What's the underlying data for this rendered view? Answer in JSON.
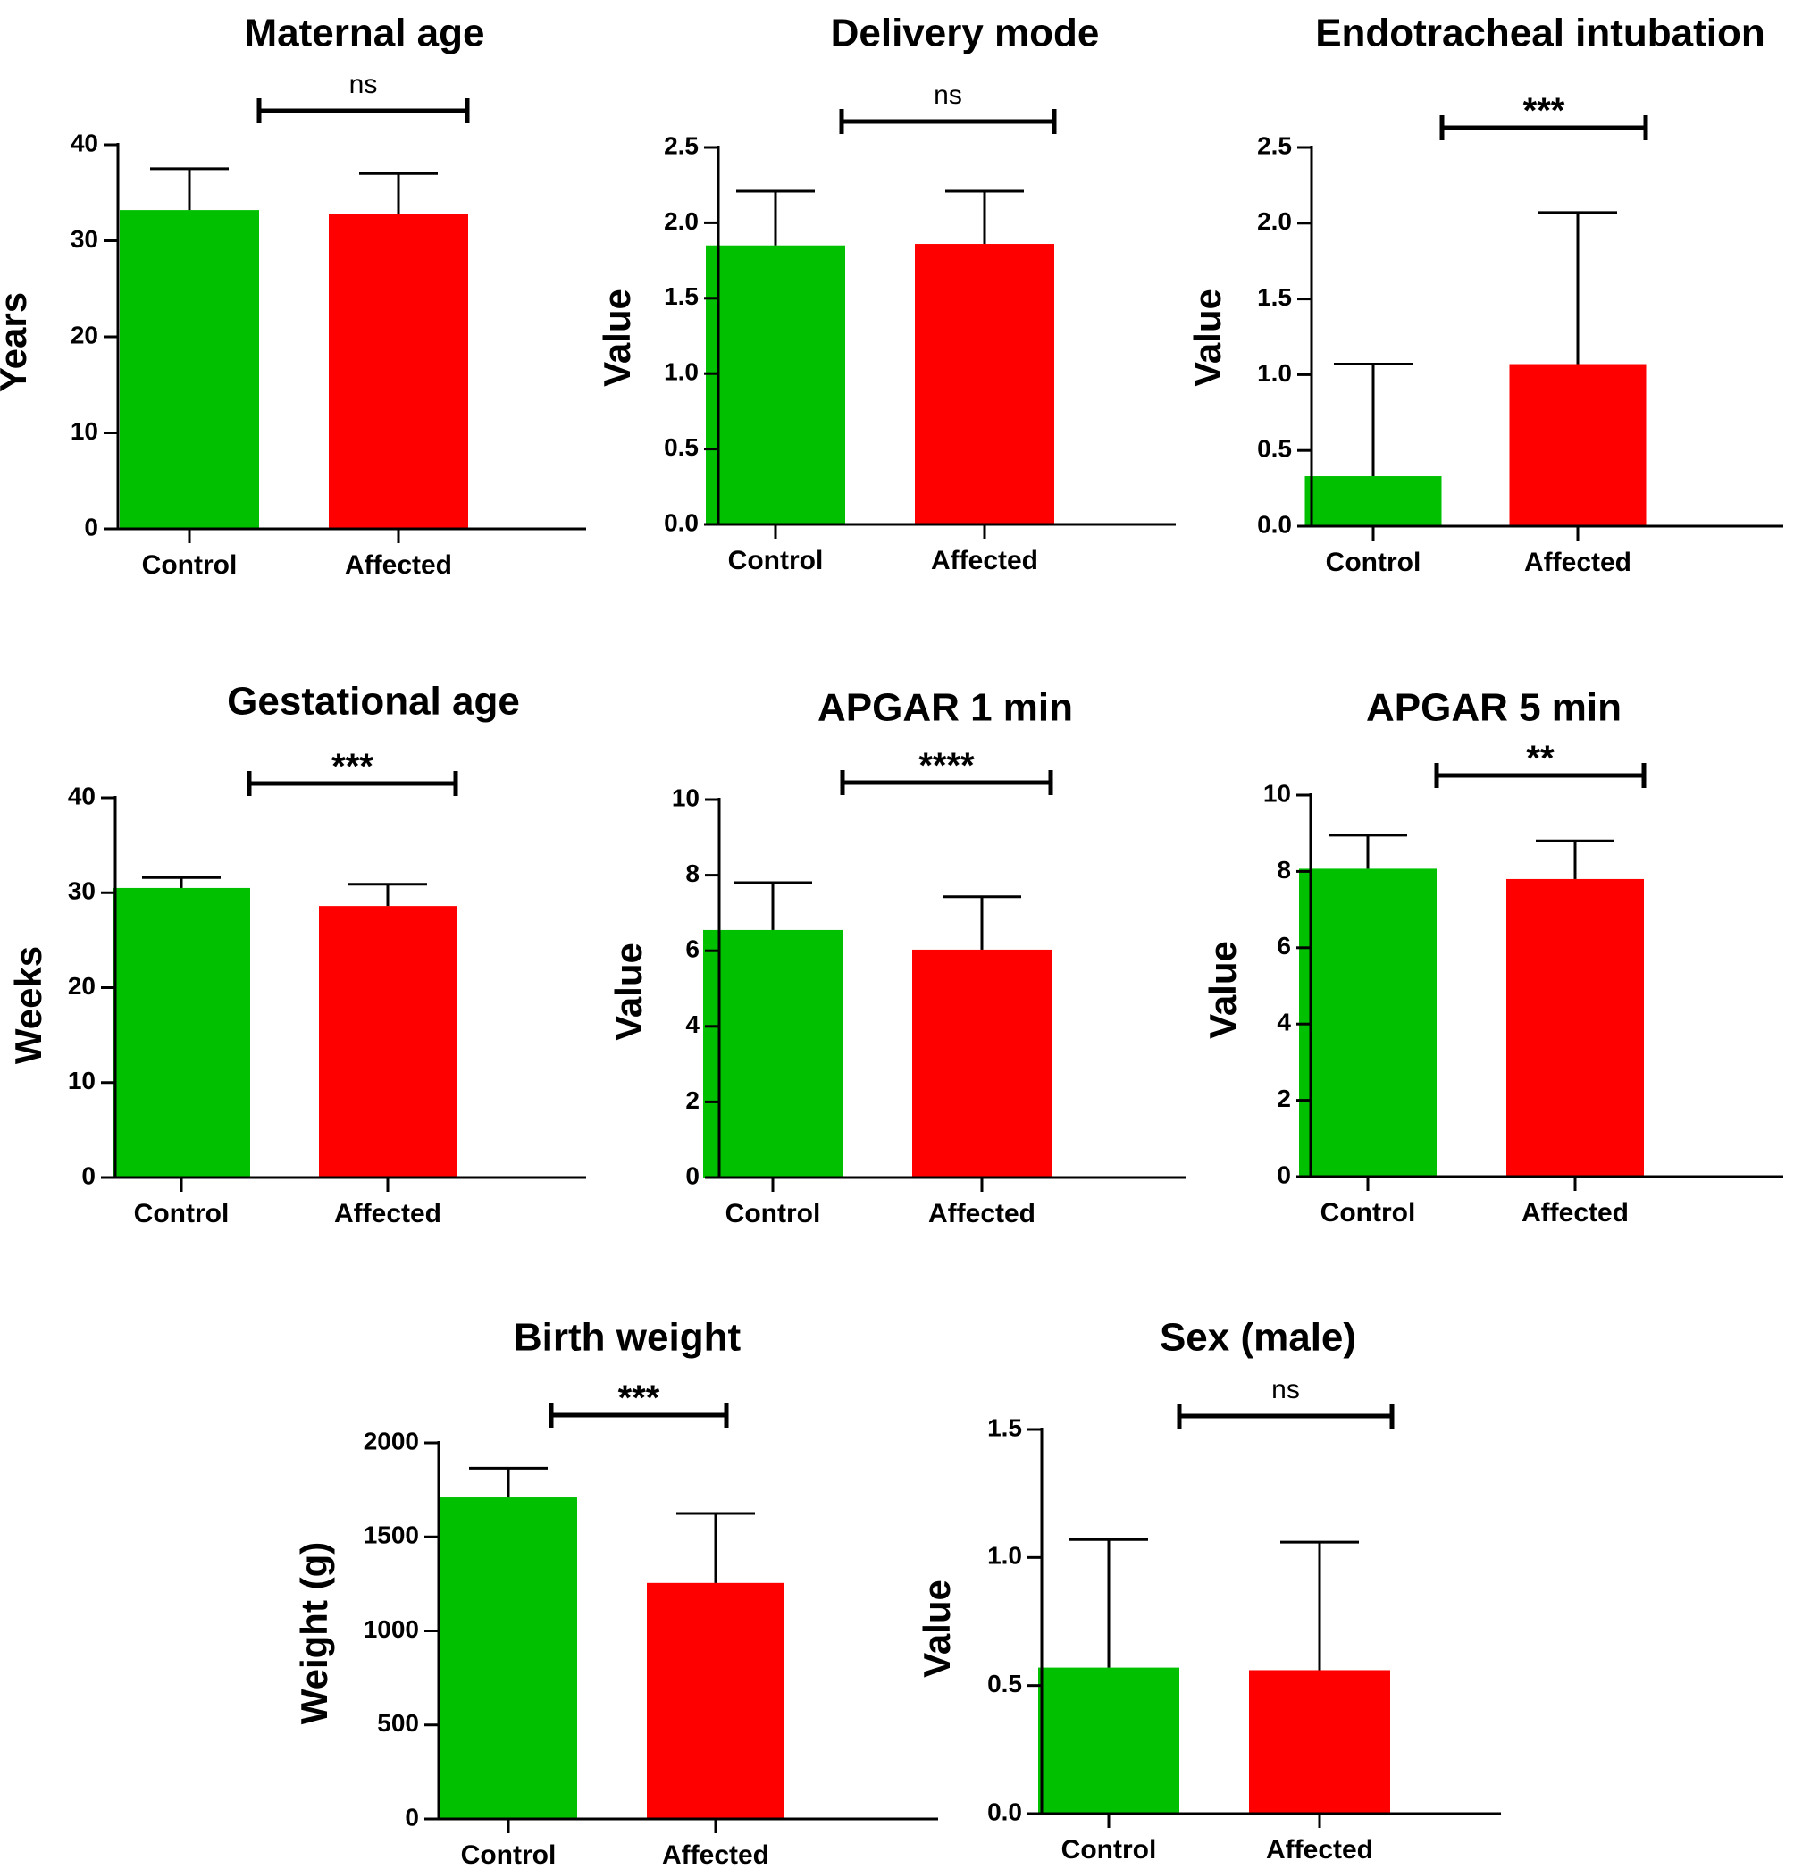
{
  "colors": {
    "control": "#00c000",
    "affected": "#ff0000",
    "axis": "#000000"
  },
  "chart_data": [
    {
      "type": "bar",
      "title": "Maternal age",
      "ylabel": "Years",
      "categories": [
        "Control",
        "Affected"
      ],
      "values": [
        33.2,
        32.8
      ],
      "errors": [
        4.3,
        4.2
      ],
      "ylim": [
        0,
        40
      ],
      "yticks": [
        0,
        10,
        20,
        30,
        40
      ],
      "significance": "ns",
      "grid": false
    },
    {
      "type": "bar",
      "title": "Delivery mode",
      "ylabel": "Value",
      "categories": [
        "Control",
        "Affected"
      ],
      "values": [
        1.85,
        1.86
      ],
      "errors": [
        0.36,
        0.35
      ],
      "ylim": [
        0,
        2.5
      ],
      "yticks": [
        "0.0",
        "0.5",
        "1.0",
        "1.5",
        "2.0",
        "2.5"
      ],
      "significance": "ns",
      "grid": false
    },
    {
      "type": "bar",
      "title": "Endotracheal intubation",
      "ylabel": "Value",
      "categories": [
        "Control",
        "Affected"
      ],
      "values": [
        0.33,
        1.07
      ],
      "errors": [
        0.74,
        1.0
      ],
      "ylim": [
        0,
        2.5
      ],
      "yticks": [
        "0.0",
        "0.5",
        "1.0",
        "1.5",
        "2.0",
        "2.5"
      ],
      "significance": "***",
      "grid": false
    },
    {
      "type": "bar",
      "title": "Gestational age",
      "ylabel": "Weeks",
      "categories": [
        "Control",
        "Affected"
      ],
      "values": [
        30.5,
        28.6
      ],
      "errors": [
        1.1,
        2.3
      ],
      "ylim": [
        0,
        40
      ],
      "yticks": [
        0,
        10,
        20,
        30,
        40
      ],
      "significance": "***",
      "grid": false
    },
    {
      "type": "bar",
      "title": "APGAR 1 min",
      "ylabel": "Value",
      "categories": [
        "Control",
        "Affected"
      ],
      "values": [
        6.55,
        6.03
      ],
      "errors": [
        1.25,
        1.4
      ],
      "ylim": [
        0,
        10
      ],
      "yticks": [
        0,
        2,
        4,
        6,
        8,
        10
      ],
      "significance": "****",
      "grid": false
    },
    {
      "type": "bar",
      "title": "APGAR 5 min",
      "ylabel": "Value",
      "categories": [
        "Control",
        "Affected"
      ],
      "values": [
        8.07,
        7.8
      ],
      "errors": [
        0.88,
        1.0
      ],
      "ylim": [
        0,
        10
      ],
      "yticks": [
        0,
        2,
        4,
        6,
        8,
        10
      ],
      "significance": "**",
      "grid": false
    },
    {
      "type": "bar",
      "title": "Birth weight",
      "ylabel": "Weight (g)",
      "categories": [
        "Control",
        "Affected"
      ],
      "values": [
        1710,
        1255
      ],
      "errors": [
        155,
        370
      ],
      "ylim": [
        0,
        2000
      ],
      "yticks": [
        0,
        500,
        1000,
        1500,
        2000
      ],
      "significance": "***",
      "grid": false
    },
    {
      "type": "bar",
      "title": "Sex (male)",
      "ylabel": "Value",
      "categories": [
        "Control",
        "Affected"
      ],
      "values": [
        0.57,
        0.56
      ],
      "errors": [
        0.5,
        0.5
      ],
      "ylim": [
        0,
        1.5
      ],
      "yticks": [
        "0.0",
        "0.5",
        "1.0",
        "1.5"
      ],
      "significance": "ns",
      "grid": false
    }
  ]
}
